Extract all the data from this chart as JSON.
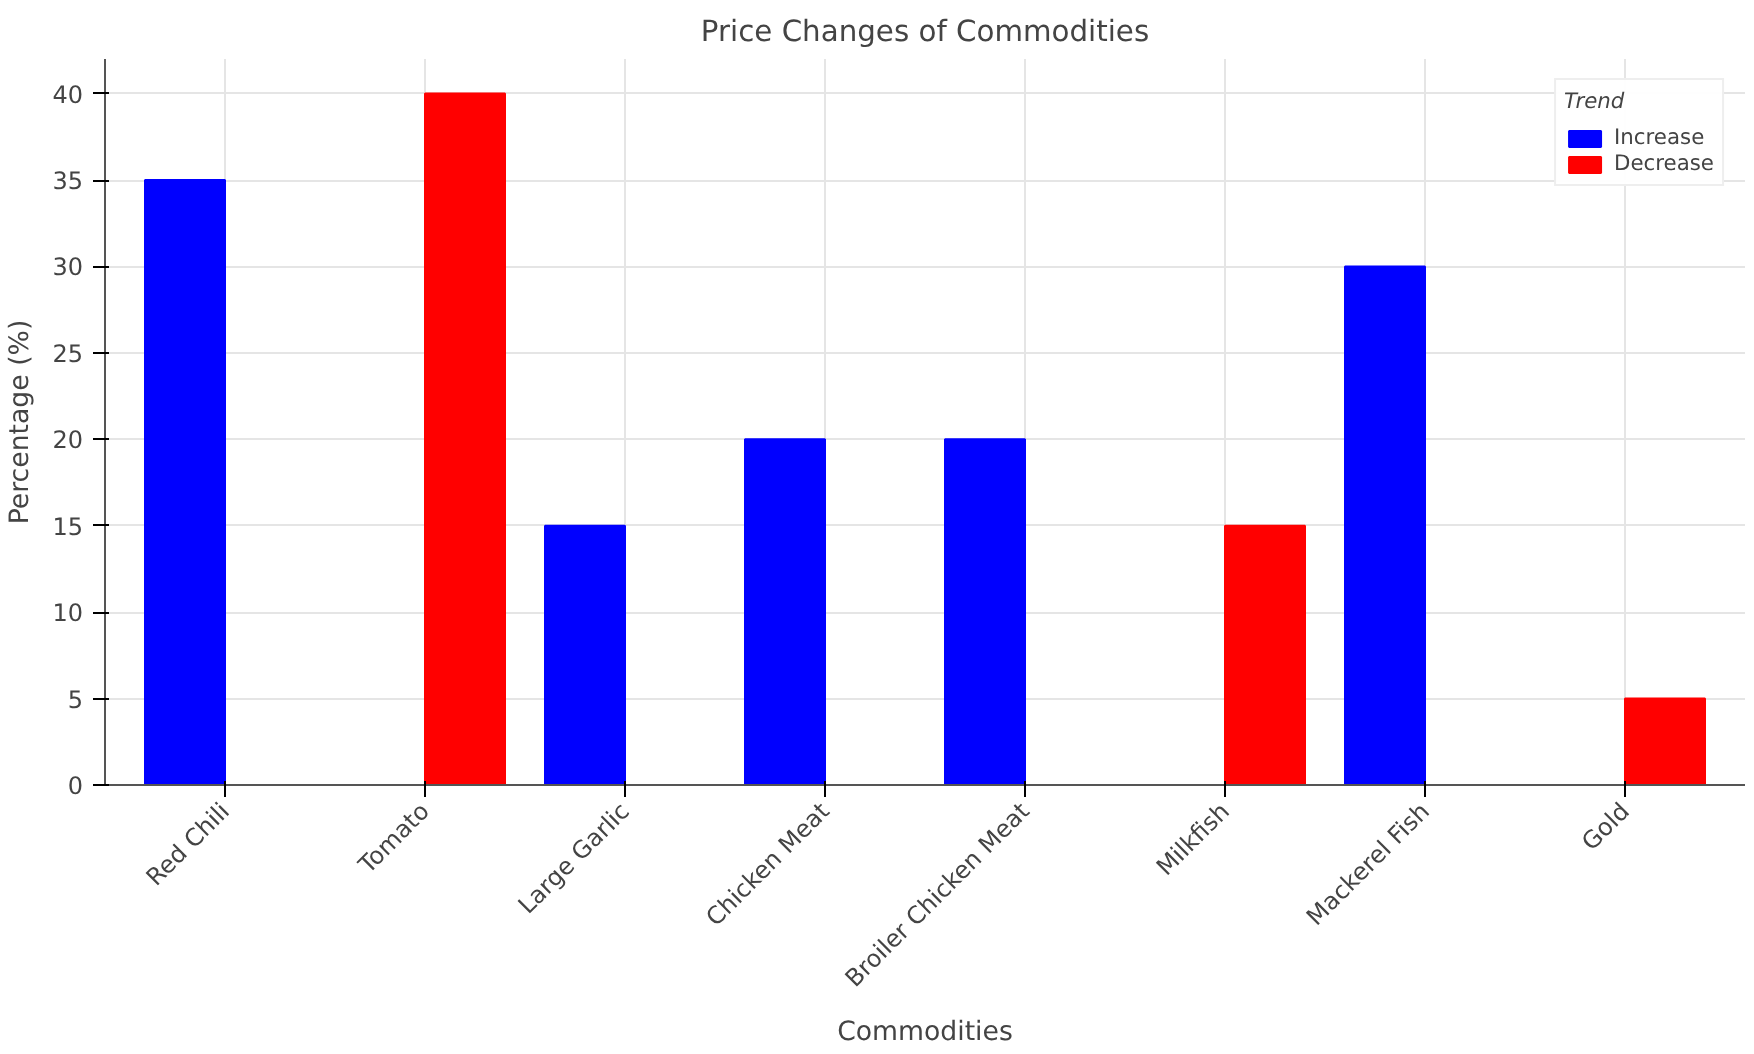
{
  "chart_data": {
    "type": "bar",
    "title": "Price Changes of Commodities",
    "xlabel": "Commodities",
    "ylabel": "Percentage (%)",
    "legend_title": "Trend",
    "categories": [
      "Red Chili",
      "Tomato",
      "Large Garlic",
      "Chicken Meat",
      "Broiler Chicken Meat",
      "Milkfish",
      "Mackerel Fish",
      "Gold"
    ],
    "series": [
      {
        "name": "Increase",
        "color": "#0000ff",
        "values": [
          35,
          null,
          15,
          20,
          20,
          null,
          30,
          null
        ]
      },
      {
        "name": "Decrease",
        "color": "#ff0000",
        "values": [
          null,
          40,
          null,
          null,
          null,
          15,
          null,
          5
        ]
      }
    ],
    "ylim": [
      0,
      42
    ],
    "yticks": [
      0,
      5,
      10,
      15,
      20,
      25,
      30,
      35,
      40
    ],
    "grid": true,
    "legend": "top right"
  }
}
